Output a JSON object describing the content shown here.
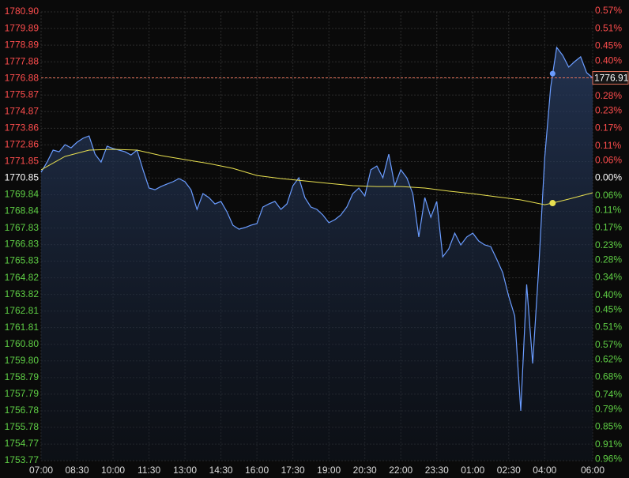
{
  "chart_data": {
    "type": "line",
    "grid": true,
    "xlim": [
      0,
      23
    ],
    "xticks": [
      {
        "value": 0,
        "label": "07:00"
      },
      {
        "value": 1.5,
        "label": "08:30"
      },
      {
        "value": 3,
        "label": "10:00"
      },
      {
        "value": 4.5,
        "label": "11:30"
      },
      {
        "value": 6,
        "label": "13:00"
      },
      {
        "value": 7.5,
        "label": "14:30"
      },
      {
        "value": 9,
        "label": "16:00"
      },
      {
        "value": 10.5,
        "label": "17:30"
      },
      {
        "value": 12,
        "label": "19:00"
      },
      {
        "value": 13.5,
        "label": "20:30"
      },
      {
        "value": 15,
        "label": "22:00"
      },
      {
        "value": 16.5,
        "label": "23:30"
      },
      {
        "value": 18,
        "label": "01:00"
      },
      {
        "value": 19.5,
        "label": "02:30"
      },
      {
        "value": 21,
        "label": "04:00"
      },
      {
        "value": 23,
        "label": "06:00"
      }
    ],
    "ylim": [
      1753.77,
      1780.9
    ],
    "yticks": [
      {
        "value": 1780.9,
        "label": "1780.90"
      },
      1779.89,
      1778.89,
      1777.88,
      1776.88,
      1775.87,
      1774.87,
      1773.86,
      1772.86,
      1771.85,
      1770.85,
      1769.84,
      1768.84,
      1767.83,
      1766.83,
      1765.83,
      1764.82,
      1763.82,
      1762.81,
      1761.81,
      {
        "value": 1760.8,
        "label": "1760.80"
      },
      {
        "value": 1759.8,
        "label": "1759.80"
      },
      1758.79,
      1757.79,
      1756.78,
      1755.78,
      1754.77,
      1753.77
    ],
    "y2lim": [
      -0.9645,
      0.5675
    ],
    "y2ticks": [
      {
        "value": 0.57,
        "label": "0.57%"
      },
      {
        "value": 0.51,
        "label": "0.51%"
      },
      {
        "value": 0.45,
        "label": "0.45%"
      },
      {
        "value": 0.4,
        "label": "0.40%"
      },
      {
        "value": 0.34,
        "label": "0.34%"
      },
      {
        "value": 0.28,
        "label": "0.28%"
      },
      {
        "value": 0.23,
        "label": "0.23%"
      },
      {
        "value": 0.17,
        "label": "0.17%"
      },
      {
        "value": 0.11,
        "label": "0.11%"
      },
      {
        "value": 0.06,
        "label": "0.06%"
      },
      {
        "value": 0,
        "label": "0.00%"
      },
      {
        "value": -0.06,
        "label": "0.06%"
      },
      {
        "value": -0.11,
        "label": "0.11%"
      },
      {
        "value": -0.17,
        "label": "0.17%"
      },
      {
        "value": -0.23,
        "label": "0.23%"
      },
      {
        "value": -0.28,
        "label": "0.28%"
      },
      {
        "value": -0.34,
        "label": "0.34%"
      },
      {
        "value": -0.4,
        "label": "0.40%"
      },
      {
        "value": -0.45,
        "label": "0.45%"
      },
      {
        "value": -0.51,
        "label": "0.51%"
      },
      {
        "value": -0.57,
        "label": "0.57%"
      },
      {
        "value": -0.62,
        "label": "0.62%"
      },
      {
        "value": -0.68,
        "label": "0.68%"
      },
      {
        "value": -0.74,
        "label": "0.74%"
      },
      {
        "value": -0.79,
        "label": "0.79%"
      },
      {
        "value": -0.85,
        "label": "0.85%"
      },
      {
        "value": -0.91,
        "label": "0.91%"
      },
      {
        "value": -0.96,
        "label": "0.96%"
      }
    ],
    "reference_price": 1770.85,
    "up_color": "#ff4d4d",
    "down_color": "#5fcf45",
    "flat_color": "#ffffff",
    "last_price": 1776.91,
    "last_price_color": "#e0705a",
    "series": [
      {
        "color": "#6a9cff",
        "fill": true,
        "x": [
          0,
          0.25,
          0.5,
          0.75,
          1,
          1.25,
          1.5,
          1.75,
          2,
          2.25,
          2.5,
          2.75,
          3,
          3.25,
          3.5,
          3.75,
          4,
          4.25,
          4.5,
          4.75,
          5,
          5.25,
          5.5,
          5.75,
          6,
          6.25,
          6.5,
          6.75,
          7,
          7.25,
          7.5,
          7.75,
          8,
          8.25,
          8.5,
          8.75,
          9,
          9.25,
          9.5,
          9.75,
          10,
          10.25,
          10.5,
          10.75,
          11,
          11.25,
          11.5,
          11.75,
          12,
          12.25,
          12.5,
          12.75,
          13,
          13.25,
          13.5,
          13.75,
          14,
          14.25,
          14.5,
          14.75,
          15,
          15.25,
          15.5,
          15.75,
          16,
          16.25,
          16.5,
          16.75,
          17,
          17.25,
          17.5,
          17.75,
          18,
          18.25,
          18.5,
          18.75,
          19,
          19.25,
          19.5,
          19.75,
          20,
          20.25,
          20.5,
          20.75,
          21,
          21.25,
          21.5,
          21.75,
          22,
          22.25,
          22.5,
          22.75,
          23
        ],
        "values": [
          1771.2,
          1771.82,
          1772.54,
          1772.44,
          1772.87,
          1772.68,
          1773.02,
          1773.26,
          1773.4,
          1772.3,
          1771.82,
          1772.78,
          1772.64,
          1772.54,
          1772.44,
          1772.25,
          1772.54,
          1771.35,
          1770.25,
          1770.15,
          1770.34,
          1770.49,
          1770.63,
          1770.82,
          1770.63,
          1770.15,
          1768.96,
          1769.91,
          1769.67,
          1769.29,
          1769.44,
          1768.81,
          1768.0,
          1767.76,
          1767.86,
          1768.0,
          1768.1,
          1769.1,
          1769.29,
          1769.44,
          1768.96,
          1769.29,
          1770.39,
          1770.87,
          1769.67,
          1769.1,
          1768.96,
          1768.62,
          1768.15,
          1768.34,
          1768.62,
          1769.1,
          1769.91,
          1770.25,
          1769.77,
          1771.35,
          1771.58,
          1770.87,
          1772.3,
          1770.39,
          1771.35,
          1770.87,
          1769.91,
          1767.29,
          1769.67,
          1768.48,
          1769.44,
          1766.09,
          1766.57,
          1767.52,
          1766.81,
          1767.29,
          1767.52,
          1767.05,
          1766.81,
          1766.71,
          1765.95,
          1765.14,
          1763.7,
          1762.51,
          1756.78,
          1764.42,
          1759.64,
          1765.37,
          1772.06,
          1776.36,
          1778.75,
          1778.27,
          1777.56,
          1777.89,
          1778.18,
          1777.22,
          1776.91
        ]
      },
      {
        "color": "#e8e050",
        "fill": false,
        "x": [
          0,
          1,
          2,
          3,
          4,
          5,
          6,
          7,
          8,
          9,
          10,
          11,
          12,
          13,
          14,
          15,
          16,
          17,
          18,
          19,
          20,
          21,
          21.33,
          22,
          23
        ],
        "values": [
          1771.35,
          1772.16,
          1772.54,
          1772.59,
          1772.54,
          1772.21,
          1771.97,
          1771.73,
          1771.44,
          1771.01,
          1770.82,
          1770.68,
          1770.53,
          1770.39,
          1770.34,
          1770.34,
          1770.25,
          1770.06,
          1769.91,
          1769.72,
          1769.53,
          1769.24,
          1769.34,
          1769.58,
          1769.96
        ]
      }
    ],
    "highlight": {
      "x": 21.33,
      "price": 1777.17,
      "ma": 1769.34
    }
  }
}
